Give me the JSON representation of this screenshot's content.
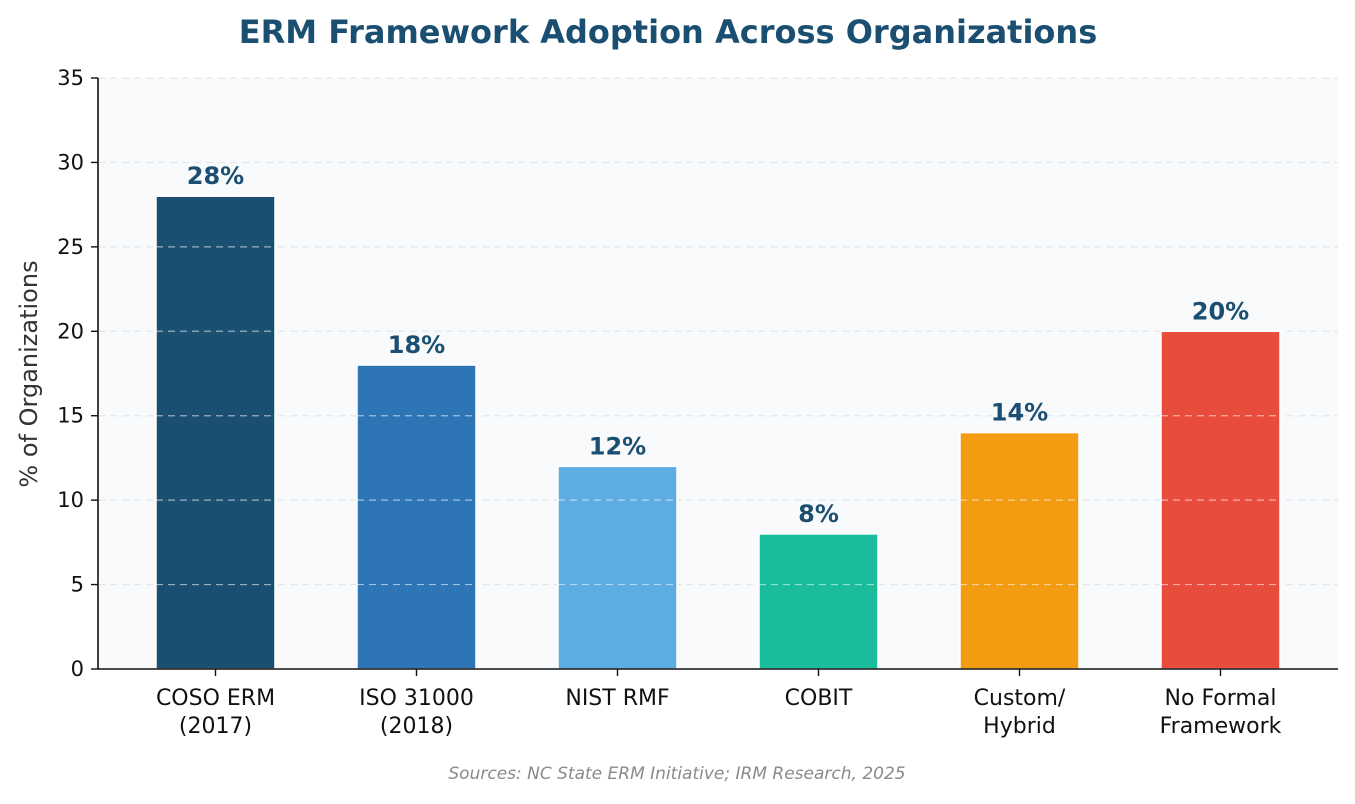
{
  "chart_data": {
    "type": "bar",
    "title": "ERM Framework Adoption Across Organizations",
    "xlabel": "",
    "ylabel": "% of Organizations",
    "ylim": [
      0,
      35
    ],
    "yticks": [
      0,
      5,
      10,
      15,
      20,
      25,
      30,
      35
    ],
    "grid": true,
    "categories": [
      [
        "COSO ERM",
        "(2017)"
      ],
      [
        "ISO 31000",
        "(2018)"
      ],
      [
        "NIST RMF"
      ],
      [
        "COBIT"
      ],
      [
        "Custom/",
        "Hybrid"
      ],
      [
        "No Formal",
        "Framework"
      ]
    ],
    "values": [
      28,
      18,
      12,
      8,
      14,
      20
    ],
    "data_labels": [
      "28%",
      "18%",
      "12%",
      "8%",
      "14%",
      "20%"
    ],
    "colors": [
      "#1b4f72",
      "#2e75b6",
      "#5dade2",
      "#1abc9c",
      "#f39c12",
      "#e74c3c"
    ],
    "title_color": "#1b4f72",
    "label_color": "#1b4f72",
    "background": "#f8fafc",
    "source": "Sources: NC State ERM Initiative; IRM Research, 2025"
  }
}
